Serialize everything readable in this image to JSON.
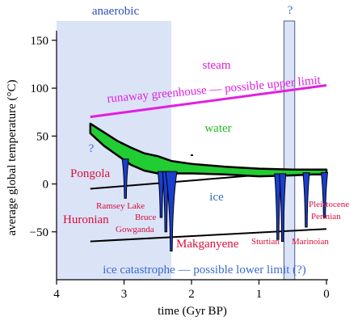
{
  "chart_data": {
    "type": "line",
    "xlabel": "time (Gyr BP)",
    "ylabel": "average global temperature (°C)",
    "xlim": [
      4,
      0
    ],
    "ylim": [
      -100,
      160
    ],
    "x_ticks": [
      4,
      3,
      2,
      1,
      0
    ],
    "y_ticks": [
      -50,
      0,
      50,
      100,
      150
    ],
    "x_tick_labels": [
      "4",
      "3",
      "2",
      "1",
      "0"
    ],
    "y_tick_labels": [
      "−50",
      "0",
      "50",
      "100",
      "150"
    ],
    "shaded_regions": [
      {
        "label": "anaerobic",
        "x": [
          4,
          2.3
        ]
      },
      {
        "label": "?",
        "x": [
          0.63,
          0.47
        ]
      }
    ],
    "limits": [
      {
        "name": "runaway greenhouse — possible upper limit",
        "x": [
          3.5,
          0
        ],
        "y": [
          70,
          103
        ]
      },
      {
        "name": "ice catastrophe — possible lower limit (?)",
        "x": [
          3.5,
          0
        ],
        "y": [
          -60,
          -47
        ]
      },
      {
        "name": "",
        "x": [
          3.5,
          0
        ],
        "y": [
          -5,
          15
        ]
      }
    ],
    "temperature_band": {
      "x": [
        3.5,
        3.3,
        3.1,
        2.9,
        2.7,
        2.5,
        2.3,
        2.0,
        1.5,
        1.0,
        0.5,
        0.2,
        0.0
      ],
      "upper": [
        63,
        54,
        45,
        38,
        32,
        29,
        24,
        21,
        18,
        16,
        15,
        15,
        15
      ],
      "lower": [
        53,
        40,
        30,
        20,
        14,
        11,
        11,
        11,
        10,
        8,
        9,
        10,
        10
      ]
    },
    "glaciations": [
      {
        "name": "Pongola",
        "x": 2.98,
        "min_y": -15
      },
      {
        "name": "Huronian",
        "x": 2.45,
        "min_y": -35
      },
      {
        "name": "Huronian",
        "x": 2.38,
        "min_y": -50
      },
      {
        "name": "Huronian",
        "x": 2.3,
        "min_y": -70
      },
      {
        "name": "Sturtian",
        "x": 0.72,
        "min_y": -58
      },
      {
        "name": "Marinoian",
        "x": 0.65,
        "min_y": -60
      },
      {
        "name": "Permian",
        "x": 0.3,
        "min_y": -45
      },
      {
        "name": "Pleistocene",
        "x": 0.03,
        "min_y": -35
      }
    ],
    "regions": {
      "steam": "steam",
      "water": "water",
      "ice": "ice"
    },
    "glaciation_labels": {
      "pongola": "Pongola",
      "ramsey_lake": "Ramsey Lake",
      "bruce": "Bruce",
      "gowganda": "Gowganda",
      "huronian": "Huronian",
      "makganyene": "Makganyene",
      "sturtian": "Sturtian",
      "marinoian": "Marinoian",
      "pleistocene": "Pleistocene",
      "permian": "Permian"
    },
    "question_mark": "?",
    "colors": {
      "anaerobic_shade": "#dbe3f7",
      "upper_limit": "#e020e0",
      "band": "#22cc33",
      "glaciation": "#1a3ecf",
      "label_red": "#d80f3a",
      "label_blue": "#3a6bd0",
      "water": "#22bb22"
    }
  }
}
